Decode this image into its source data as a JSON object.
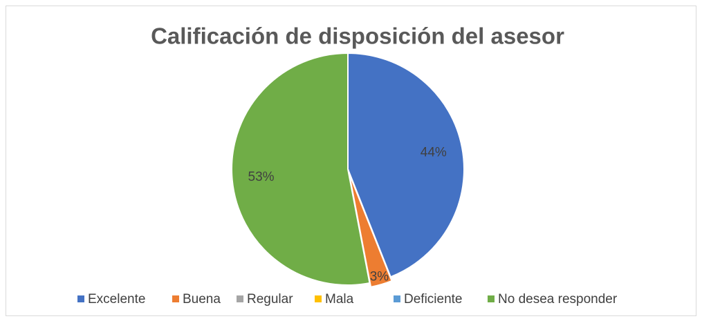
{
  "chart_data": {
    "type": "pie",
    "title": "Calificación de disposición del asesor",
    "categories": [
      "Excelente",
      "Buena",
      "Regular",
      "Mala",
      "Deficiente",
      "No desea responder"
    ],
    "values": [
      44,
      3,
      0,
      0,
      0,
      53
    ],
    "value_labels": [
      "44%",
      "3%",
      null,
      null,
      null,
      "53%"
    ],
    "colors": [
      "#4472c4",
      "#ed7d31",
      "#a5a5a5",
      "#ffc000",
      "#5b9bd5",
      "#70ad47"
    ],
    "legend": "bottom"
  }
}
